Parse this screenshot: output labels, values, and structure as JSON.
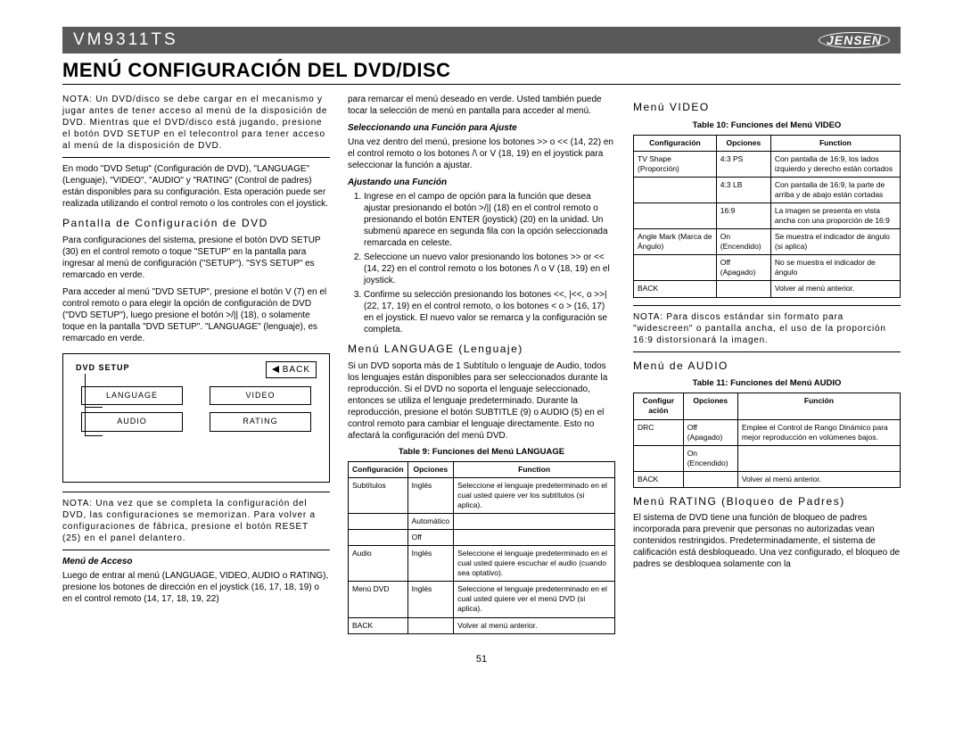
{
  "header": {
    "model": "VM9311TS",
    "brand": "JENSEN"
  },
  "title": "MENÚ CONFIGURACIÓN DEL DVD/DISC",
  "col1": {
    "note1": "NOTA: Un DVD/disco se debe cargar en el mecanismo y jugar antes de tener acceso al menú de la disposición de DVD. Mientras que el DVD/disco está jugando, presione el botón DVD SETUP en el telecontrol para tener acceso al menú de la disposición de DVD.",
    "p1": "En modo \"DVD Setup\" (Configuración de DVD), \"LANGUAGE\" (Lenguaje), \"VIDEO\", \"AUDIO\" y \"RATING\" (Control de padres) están disponibles para su configuración. Esta operación puede ser realizada utilizando el control remoto o los controles con el joystick.",
    "h1": "Pantalla de Configuración de DVD",
    "p2": "Para configuraciones del sistema, presione el botón DVD SETUP (30) en el control remoto o toque \"SETUP\" en la pantalla para ingresar al menú de configuración (\"SETUP\"). \"SYS SETUP\" es remarcado en verde.",
    "p3": "Para acceder al menú \"DVD SETUP\", presione el botón V (7) en el control remoto o para elegir la opción de configuración de DVD (\"DVD SETUP\"), luego presione el botón >/|| (18), o solamente toque en la pantalla \"DVD SETUP\". \"LANGUAGE\" (lenguaje), es remarcado en verde.",
    "box": {
      "title": "DVD SETUP",
      "back": "BACK",
      "m1": "LANGUAGE",
      "m2": "VIDEO",
      "m3": "AUDIO",
      "m4": "RATING"
    },
    "note2": "NOTA: Una vez que se completa la configuración del DVD, las configuraciones se memorizan. Para volver a configuraciones de fábrica, presione el botón RESET (25) en el panel delantero.",
    "h2": "Menú de Acceso",
    "p4": "Luego de entrar al menú (LANGUAGE, VIDEO, AUDIO o RATING), presione los botones de dirección en el joystick (16, 17, 18, 19) o en el control remoto (14, 17, 18, 19, 22)"
  },
  "col2": {
    "p1": "para remarcar el menú deseado en verde. Usted también puede tocar la selección de menú en pantalla para acceder al menú.",
    "h1": "Seleccionando una Función para Ajuste",
    "p2": "Una vez dentro del menú, presione los botones >> o << (14, 22) en el control remoto o los botones /\\ or V (18, 19) en el joystick para seleccionar la función a ajustar.",
    "h2": "Ajustando una Función",
    "li1": "Ingrese en el campo de opción para la función que desea ajustar presionando el botón >/|| (18) en el control remoto o presionando el botón ENTER (joystick) (20) en la unidad. Un submenú aparece en segunda fila con la opción seleccionada remarcada en celeste.",
    "li2": "Seleccione un nuevo valor presionando los botones >> or << (14, 22) en el control remoto o los botones /\\ o V (18, 19) en el joystick.",
    "li3": "Confirme su selección presionando los botones <<, |<<, o >>| (22, 17, 19) en el control remoto, o los botones < o > (16, 17) en el joystick. El nuevo valor se remarca y la configuración se completa.",
    "h3": "Menú LANGUAGE (Lenguaje)",
    "p3": "Si un DVD soporta más de 1 Subtítulo o lenguaje de Audio, todos los lenguajes están disponibles para ser seleccionados durante la reproducción. Si el DVD no soporta el lenguaje seleccionado, entonces se utiliza el lenguaje predeterminado. Durante la reproducción, presione el botón SUBTITLE (9) o AUDIO (5) en el control remoto para cambiar el lenguaje directamente. Esto no afectará la configuración del menú DVD.",
    "tcap": "Table 9: Funciones del Menú LANGUAGE",
    "tbl": {
      "th1": "Configuración",
      "th2": "Opciones",
      "th3": "Function",
      "rows": [
        [
          "Subtítulos",
          "Inglés",
          "Seleccione el lenguaje predeterminado en el cual usted quiere ver los subtítulos (si aplica)."
        ],
        [
          "",
          "Automático",
          ""
        ],
        [
          "",
          "Off",
          ""
        ],
        [
          "Audio",
          "Inglés",
          "Seleccione el lenguaje predeterminado en el cual usted quiere escuchar el audio (cuando sea optativo)."
        ],
        [
          "Menú DVD",
          "Inglés",
          "Seleccione el lenguaje predeterminado en el cual usted quiere ver el menú DVD (si aplica)."
        ],
        [
          "BACK",
          "",
          "Volver al menú anterior."
        ]
      ]
    }
  },
  "col3": {
    "h1": "Menú VIDEO",
    "tcap1": "Table 10: Funciones del Menú VIDEO",
    "tbl1": {
      "th1": "Configuración",
      "th2": "Opciones",
      "th3": "Function",
      "rows": [
        [
          "TV Shape (Proporción)",
          "4:3 PS",
          "Con pantalla de 16:9, los lados izquierdo y derecho están cortados"
        ],
        [
          "",
          "4:3 LB",
          "Con pantalla de 16:9, la parte de arriba y de abajo están cortadas"
        ],
        [
          "",
          "16:9",
          "La imagen se presenta en vista ancha con una proporción de 16:9"
        ],
        [
          "Angle Mark (Marca de Ángulo)",
          "On (Encendido)",
          "Se muestra el indicador de ángulo (si aplica)"
        ],
        [
          "",
          "Off (Apagado)",
          "No se muestra el indicador de ángulo"
        ],
        [
          "BACK",
          "",
          "Volver al menú anterior."
        ]
      ]
    },
    "note1": "NOTA: Para discos estándar sin formato para \"widescreen\" o pantalla ancha, el uso de la proporción 16:9 distorsionará la imagen.",
    "h2": "Menú de AUDIO",
    "tcap2": "Table 11: Funciones del Menú AUDIO",
    "tbl2": {
      "th1": "Configur ación",
      "th2": "Opciones",
      "th3": "Función",
      "rows": [
        [
          "DRC",
          "Off (Apagado)",
          "Emplee el Control de Rango Dinámico para mejor reproducción en volúmenes bajos."
        ],
        [
          "",
          "On (Encendido)",
          ""
        ],
        [
          "BACK",
          "",
          "Volver al menú anterior."
        ]
      ]
    },
    "h3": "Menú RATING (Bloqueo de Padres)",
    "p1": "El sistema de DVD tiene una función de bloqueo de padres incorporada para prevenir que personas no autorizadas vean contenidos restringidos. Predeterminadamente, el sistema de calificación está desbloqueado. Una vez configurado, el bloqueo de padres se desbloquea solamente con la"
  },
  "pageNum": "51"
}
